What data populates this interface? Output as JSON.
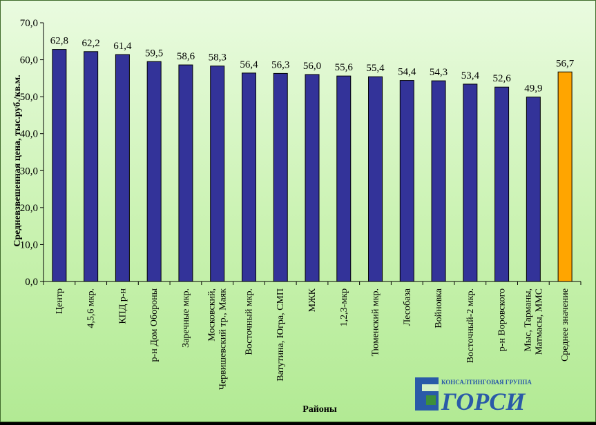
{
  "chart_data": {
    "type": "bar",
    "xlabel": "Районы",
    "ylabel": "Средневзвешенная цена, тыс.руб./кв.м.",
    "ylim": [
      0,
      70
    ],
    "yticks": [
      "0,0",
      "10,0",
      "20,0",
      "30,0",
      "40,0",
      "50,0",
      "60,0",
      "70,0"
    ],
    "grid": false,
    "legend": "none",
    "categories": [
      [
        "Центр"
      ],
      [
        "4,5,6 мкр."
      ],
      [
        "КПД р-н"
      ],
      [
        "р-н Дом Обороны"
      ],
      [
        "Заречные мкр."
      ],
      [
        "Московский,",
        "Червишевский тр., Маяк"
      ],
      [
        "Восточный мкр."
      ],
      [
        "Ватутина,  Югра, СМП"
      ],
      [
        "МЖК"
      ],
      [
        "1,2,3-мкр"
      ],
      [
        "Тюменский мкр."
      ],
      [
        "Лесобаза"
      ],
      [
        "Войновка"
      ],
      [
        "Восточный-2 мкр."
      ],
      [
        "р-н Воровского"
      ],
      [
        "Мыс, Тарманы,",
        "Матмасы, ММС"
      ],
      [
        "Среднее значение"
      ]
    ],
    "values": [
      62.8,
      62.2,
      61.4,
      59.5,
      58.6,
      58.3,
      56.4,
      56.3,
      56.0,
      55.6,
      55.4,
      54.4,
      54.3,
      53.4,
      52.6,
      49.9,
      56.7
    ],
    "value_labels": [
      "62,8",
      "62,2",
      "61,4",
      "59,5",
      "58,6",
      "58,3",
      "56,4",
      "56,3",
      "56,0",
      "55,6",
      "55,4",
      "54,4",
      "54,3",
      "53,4",
      "52,6",
      "49,9",
      "56,7"
    ],
    "colors": {
      "bar": "#333399",
      "highlight": "#FFA500",
      "bar_stroke": "#000000"
    },
    "highlight_index": 16
  },
  "logo": {
    "tagline": "КОНСАЛТИНГОВАЯ ГРУППА",
    "name": "ГОРСИ",
    "colors": {
      "primary": "#2a5aa8",
      "accent": "#3d8f3a"
    }
  }
}
